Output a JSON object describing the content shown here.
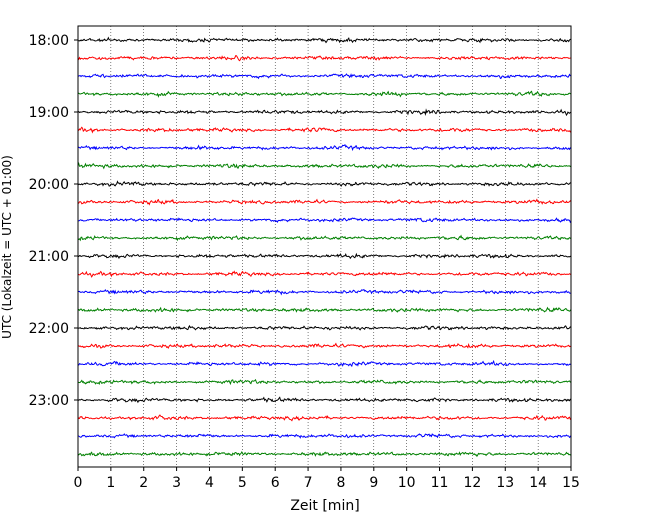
{
  "chart_data": {
    "type": "line",
    "title": "",
    "xlabel": "Zeit  [min]",
    "ylabel": "UTC (Lokalzeit = UTC + 01:00)",
    "xlim": [
      0,
      15
    ],
    "x_ticks": [
      "0",
      "1",
      "2",
      "3",
      "4",
      "5",
      "6",
      "7",
      "8",
      "9",
      "10",
      "11",
      "12",
      "13",
      "14",
      "15"
    ],
    "y_ticks": [
      "18:00",
      "19:00",
      "20:00",
      "21:00",
      "22:00",
      "23:00"
    ],
    "grid": "vertical dotted lines at each minute",
    "trace_interval_min": 15,
    "traces_start": "18:00",
    "traces_end": "23:45",
    "trace_count": 24,
    "trace_colors": [
      "#000000",
      "#ff0000",
      "#0000ff",
      "#008000"
    ],
    "signal": "noisy seismic-like traces, roughly constant amplitude"
  }
}
